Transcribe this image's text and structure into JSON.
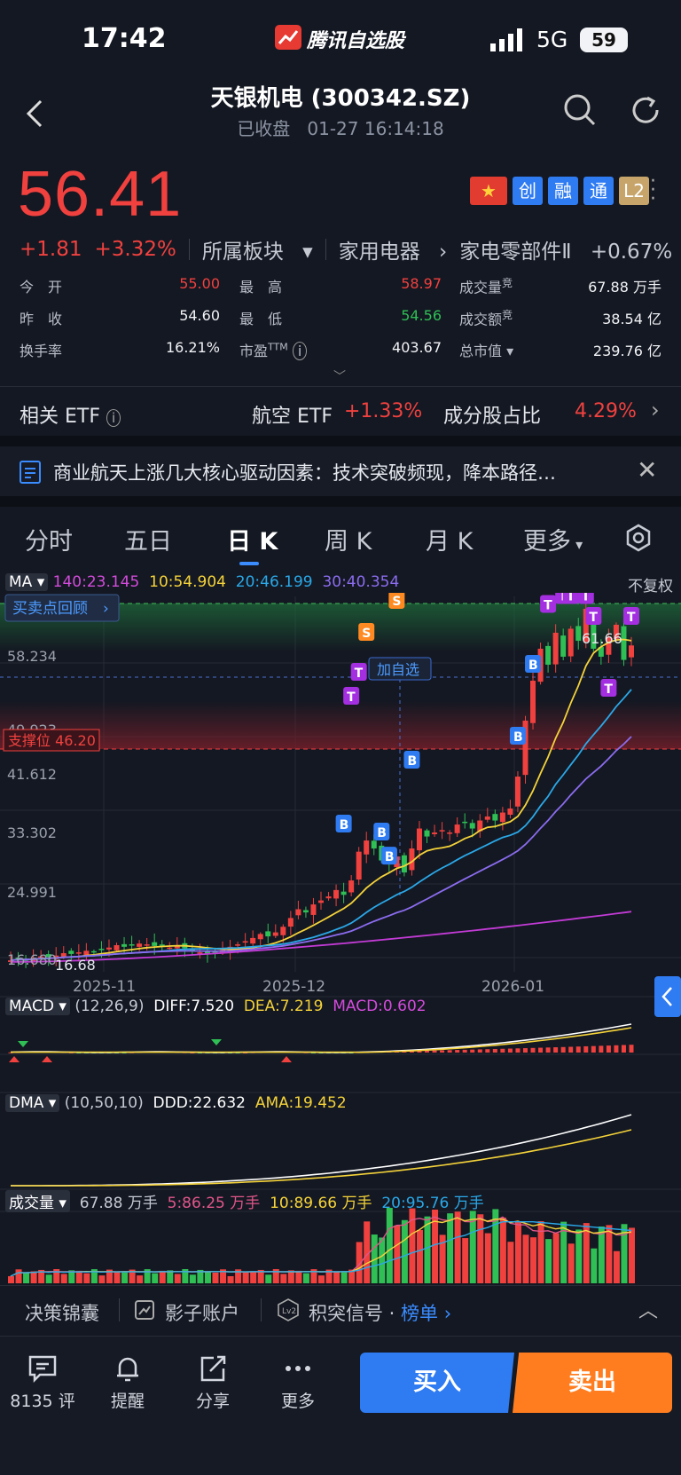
{
  "status_bar": {
    "time": "17:42",
    "app_name": "腾讯自选股",
    "network": "5G",
    "battery": "59"
  },
  "header": {
    "stock_name": "天银机电 (300342.SZ)",
    "market_status": "已收盘",
    "datetime": "01-27 16:14:18"
  },
  "quote": {
    "price": "56.41",
    "change": "+1.81",
    "change_pct": "+3.32%",
    "sector_label": "所属板块",
    "sector_path_1": "家用电器",
    "sector_path_2": "家电零部件Ⅱ",
    "sector_change": "+0.67%",
    "badges": [
      "创",
      "融",
      "通",
      "L2"
    ]
  },
  "stats": {
    "open_label": "今　开",
    "open": "55.00",
    "high_label": "最　高",
    "high": "58.97",
    "volume_label": "成交量",
    "volume": "67.88 万手",
    "prev_label": "昨　收",
    "prev": "54.60",
    "low_label": "最　低",
    "low": "54.56",
    "amount_label": "成交额",
    "amount": "38.54 亿",
    "turnover_label": "换手率",
    "turnover": "16.21%",
    "pe_label": "市盈",
    "pe_sup": "TTM",
    "pe": "403.67",
    "mcap_label": "总市值",
    "mcap": "239.76 亿",
    "sup_jing": "竞"
  },
  "etf": {
    "label": "相关 ETF",
    "name": "航空 ETF",
    "change": "+1.33%",
    "ratio_label": "成分股占比",
    "ratio": "4.29%"
  },
  "news": {
    "text": "商业航天上涨几大核心驱动因素：技术突破频现，降本路径…"
  },
  "tabs": [
    "分时",
    "五日",
    "日 K",
    "周 K",
    "月 K",
    "更多"
  ],
  "ma_legend": {
    "selector": "MA",
    "ma140": "140:23.145",
    "ma10": "10:54.904",
    "ma20": "20:46.199",
    "ma30": "30:40.354",
    "adjust": "不复权"
  },
  "kchart": {
    "review_button": "买卖点回顾",
    "add_watch": "加自选",
    "support_label": "支撑位 46.20",
    "peak_label": "61.66",
    "low_label": "16.68",
    "y_ticks": [
      "58.234",
      "49.923",
      "41.612",
      "33.302",
      "24.991",
      "16.680"
    ],
    "x_ticks": [
      "2025-11",
      "2025-12",
      "2026-01"
    ]
  },
  "macd": {
    "selector": "MACD",
    "params": "(12,26,9)",
    "diff": "DIFF:7.520",
    "dea": "DEA:7.219",
    "macd": "MACD:0.602"
  },
  "dma": {
    "selector": "DMA",
    "params": "(10,50,10)",
    "ddd": "DDD:22.632",
    "ama": "AMA:19.452"
  },
  "vol": {
    "selector": "成交量",
    "value": "67.88 万手",
    "v5": "5:86.25 万手",
    "v10": "10:89.66 万手",
    "v20": "20:95.76 万手"
  },
  "signal_bar": {
    "item1": "决策锦囊",
    "item2": "影子账户",
    "item3": "积突信号",
    "item3_link": "榜单"
  },
  "nav": {
    "comments": "8135 评",
    "alert": "提醒",
    "share": "分享",
    "more": "更多",
    "buy": "买入",
    "sell": "卖出"
  },
  "chart_data": {
    "type": "candlestick",
    "y_range": [
      16.68,
      61.66
    ],
    "x_ticks": [
      "2025-11",
      "2025-12",
      "2026-01"
    ],
    "close_series_approx": [
      17.0,
      17.2,
      17.1,
      17.3,
      17.5,
      17.4,
      17.6,
      17.9,
      17.8,
      18.0,
      18.2,
      18.1,
      18.4,
      18.6,
      18.9,
      18.7,
      18.9,
      19.1,
      19.0,
      18.8,
      18.9,
      18.6,
      18.8,
      18.5,
      18.2,
      18.0,
      17.8,
      18.1,
      18.3,
      18.7,
      19.0,
      19.4,
      19.8,
      20.3,
      20.0,
      20.5,
      21.2,
      22.3,
      23.4,
      23.0,
      24.0,
      24.5,
      25.0,
      25.8,
      25.2,
      27.0,
      30.6,
      32.0,
      31.0,
      29.5,
      29.0,
      30.0,
      28.0,
      31.0,
      33.5,
      32.5,
      33.0,
      33.3,
      33.0,
      34.0,
      34.2,
      33.5,
      34.5,
      35.0,
      34.5,
      35.5,
      36.0,
      40.0,
      47.0,
      52.0,
      56.0,
      54.0,
      58.0,
      55.0,
      58.5,
      57.0,
      61.0,
      56.0,
      55.0,
      57.5,
      59.0,
      54.6,
      56.41
    ],
    "ma_legend": {
      "MA140": 23.145,
      "MA10": 54.904,
      "MA20": 46.199,
      "MA30": 40.354
    },
    "support": 46.2,
    "macd": {
      "DIFF": 7.52,
      "DEA": 7.219,
      "MACD": 0.602
    },
    "dma": {
      "DDD": 22.632,
      "AMA": 19.452
    },
    "volume": {
      "latest": "67.88 万手",
      "MA5": "86.25 万手",
      "MA10": "89.66 万手",
      "MA20": "95.76 万手"
    },
    "colors": {
      "up": "#f0413f",
      "down": "#2fbf55",
      "ma140": "#c23bd6",
      "ma10": "#f5d33a",
      "ma20": "#2aa8e8",
      "ma30": "#8b6cf0"
    }
  }
}
